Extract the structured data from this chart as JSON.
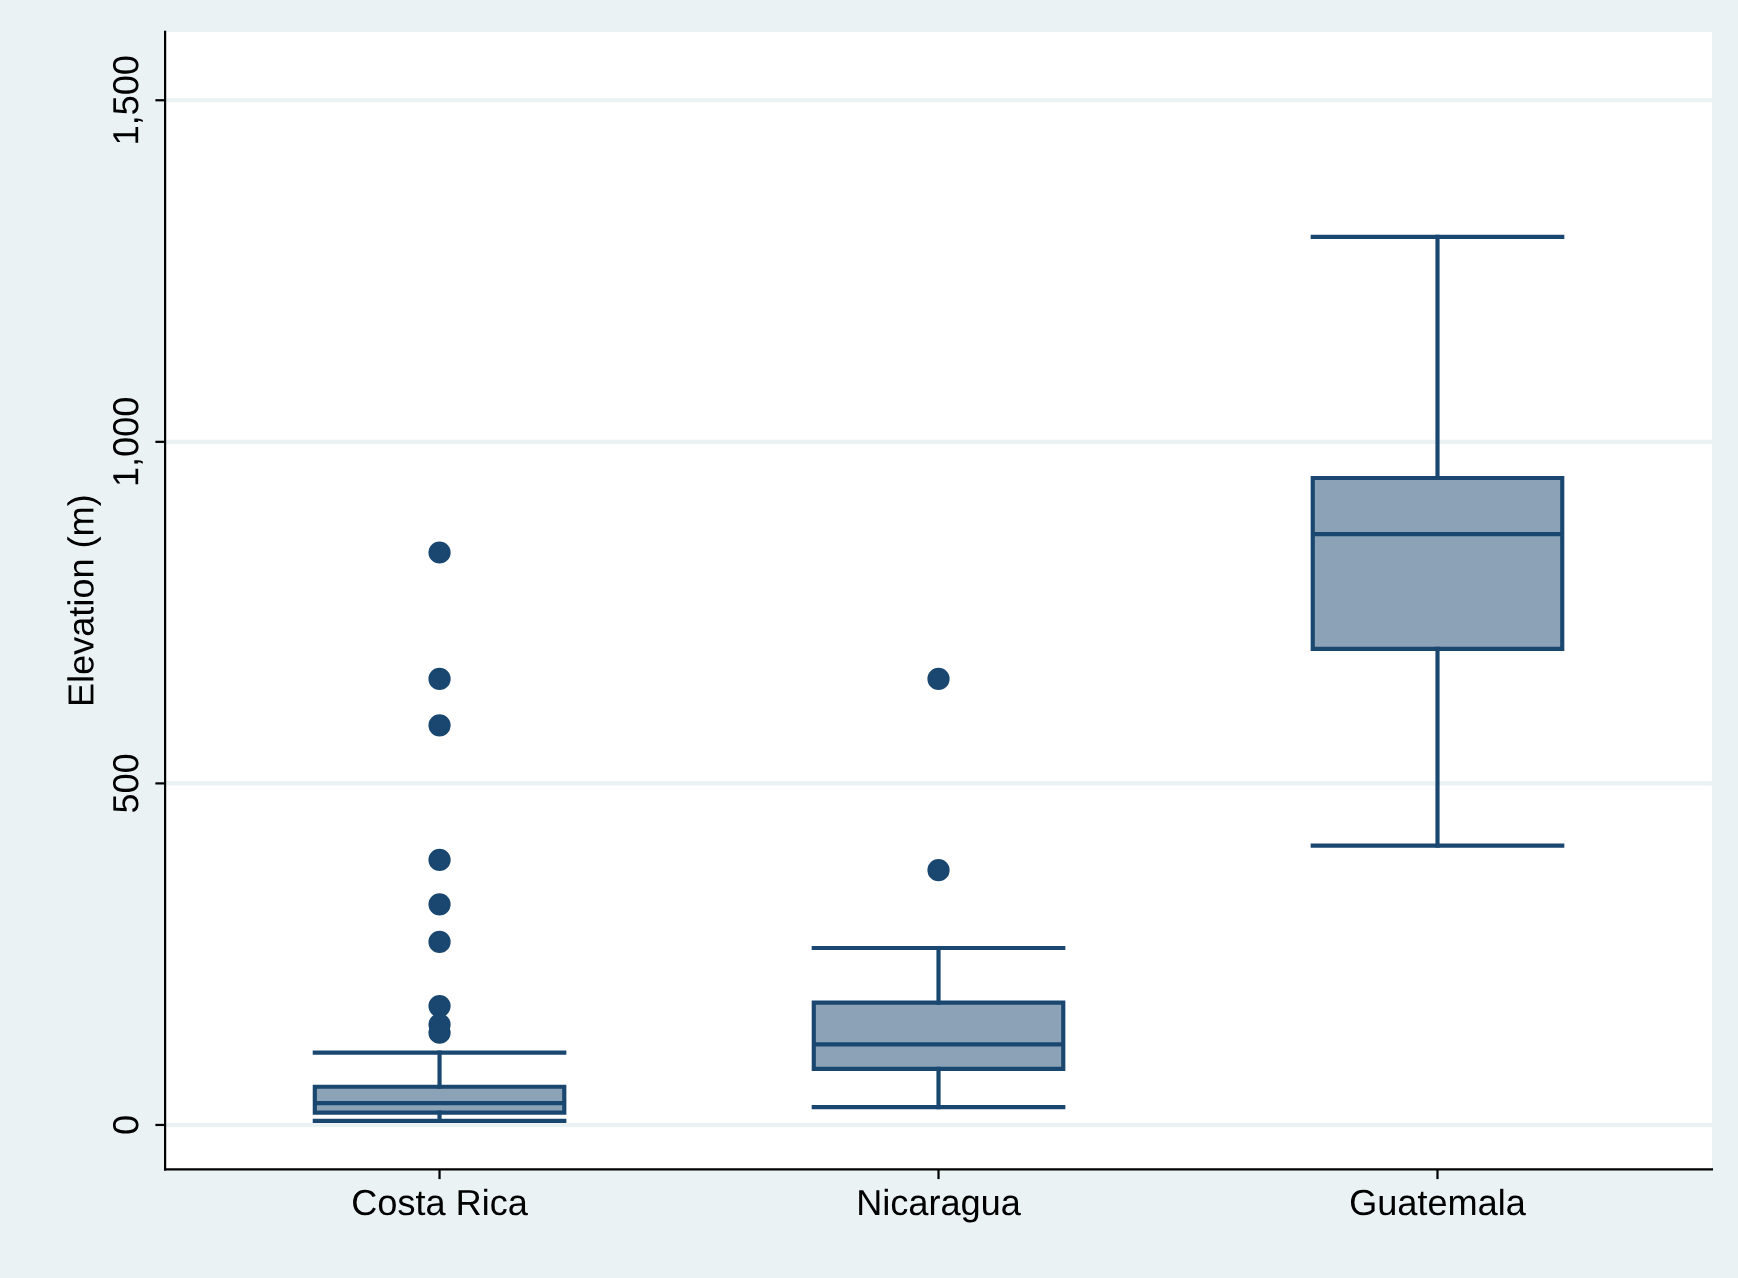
{
  "chart_data": {
    "type": "box",
    "ylabel": "Elevation (m)",
    "categories": [
      "Costa Rica",
      "Nicaragua",
      "Guatemala"
    ],
    "boxes": [
      {
        "low": 6,
        "q1": 18,
        "median": 32,
        "q3": 56,
        "high": 106,
        "outliers": [
          838,
          653,
          585,
          388,
          323,
          268,
          174,
          147,
          135
        ]
      },
      {
        "low": 26,
        "q1": 82,
        "median": 118,
        "q3": 179,
        "high": 259,
        "outliers": [
          653,
          373
        ]
      },
      {
        "low": 409,
        "q1": 697,
        "median": 865,
        "q3": 947,
        "high": 1300
      }
    ],
    "color": "#1a476f",
    "ylim": [
      -65,
      1600
    ],
    "yticks": [
      0,
      500,
      {
        "value": 1000,
        "label": "1,000"
      },
      {
        "value": 1500,
        "label": "1,500"
      }
    ],
    "grid": "y"
  }
}
